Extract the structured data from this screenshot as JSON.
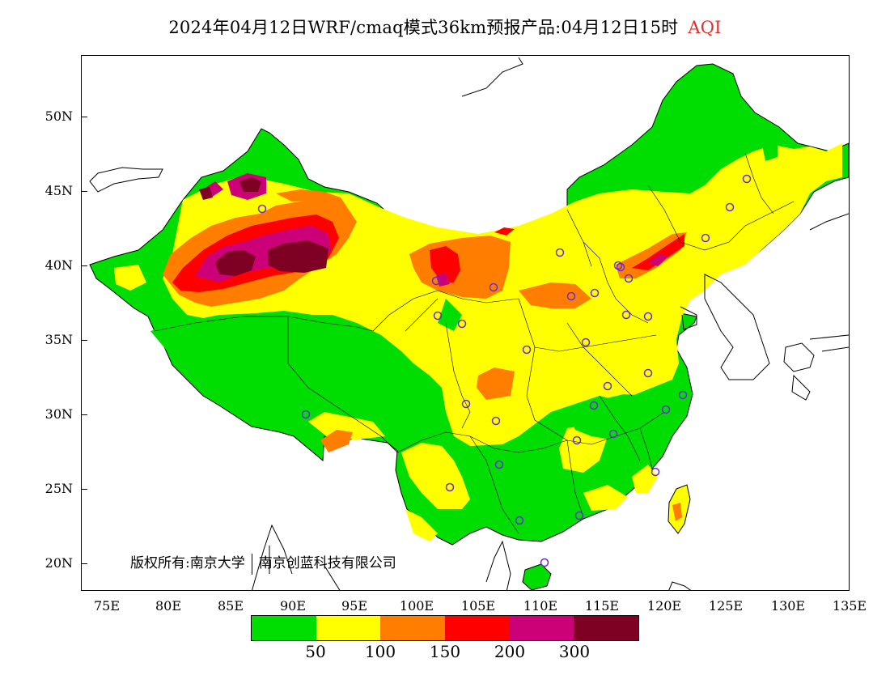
{
  "title": {
    "main": "2024年04月12日WRF/cmaq模式36km预报产品:04月12日15时",
    "product": "AQI"
  },
  "axes": {
    "y_labels": [
      "50N",
      "45N",
      "40N",
      "35N",
      "30N",
      "25N",
      "20N"
    ],
    "x_labels": [
      "75E",
      "80E",
      "85E",
      "90E",
      "95E",
      "100E",
      "105E",
      "110E",
      "115E",
      "120E",
      "125E",
      "130E",
      "135E"
    ]
  },
  "legend": {
    "colors": [
      "#00dd00",
      "#ffff00",
      "#ff7e00",
      "#ff0000",
      "#cc0077",
      "#7e0023"
    ],
    "values": [
      "50",
      "100",
      "150",
      "200",
      "300"
    ]
  },
  "copyright": {
    "owner_a": "版权所有:南京大学",
    "owner_b": "南京创蓝科技有限公司"
  }
}
